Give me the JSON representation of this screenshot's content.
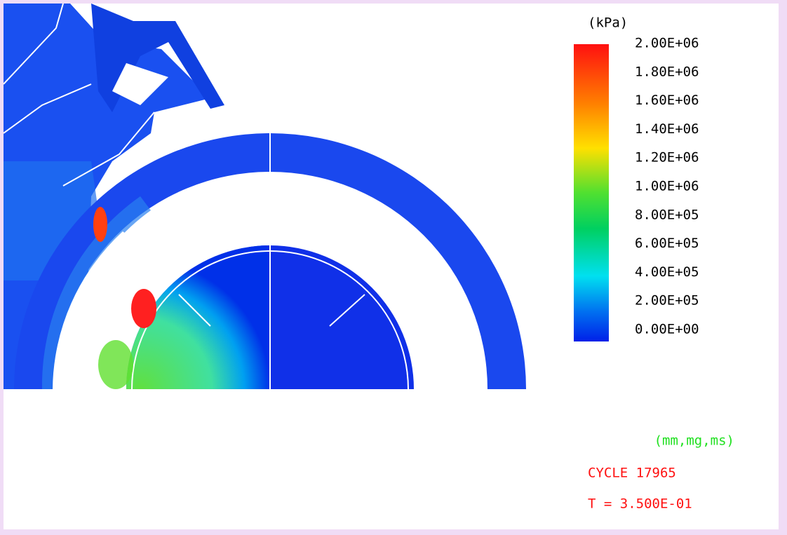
{
  "legend": {
    "unit": "(kPa)",
    "labels": [
      "2.00E+06",
      "1.80E+06",
      "1.60E+06",
      "1.40E+06",
      "1.20E+06",
      "1.00E+06",
      "8.00E+05",
      "6.00E+05",
      "4.00E+05",
      "2.00E+05",
      "0.00E+00"
    ]
  },
  "units": "(mm,mg,ms)",
  "cycle": "CYCLE 17965",
  "time": "T = 3.500E-01"
}
